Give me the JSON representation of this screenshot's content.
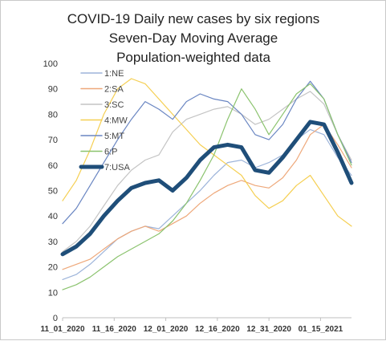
{
  "chart_data": {
    "type": "line",
    "title_lines": [
      "COVID-19 Daily new cases by six regions",
      "Seven-Day Moving Average",
      "Population-weighted data"
    ],
    "xlabel": "",
    "ylabel": "",
    "ylim": [
      0,
      100
    ],
    "yticks": [
      0,
      10,
      20,
      30,
      40,
      50,
      60,
      70,
      80,
      90,
      100
    ],
    "xlim": [
      "2020-11-01",
      "2021-01-24"
    ],
    "xticks": [
      "11_01_2020",
      "11_16_2020",
      "12_01_2020",
      "12_16_2020",
      "12_31_2020",
      "01_15_2021"
    ],
    "grid": false,
    "legend_position": "top-left",
    "series": [
      {
        "name": "1:NE",
        "color": "#9db4da",
        "x": [
          "2020-11-01",
          "2020-11-05",
          "2020-11-09",
          "2020-11-13",
          "2020-11-17",
          "2020-11-21",
          "2020-11-25",
          "2020-11-29",
          "2020-12-03",
          "2020-12-07",
          "2020-12-11",
          "2020-12-15",
          "2020-12-19",
          "2020-12-23",
          "2020-12-27",
          "2020-12-31",
          "2021-01-04",
          "2021-01-08",
          "2021-01-12",
          "2021-01-16",
          "2021-01-20",
          "2021-01-24"
        ],
        "values": [
          15,
          17,
          21,
          26,
          31,
          34,
          36,
          35,
          40,
          45,
          50,
          56,
          61,
          62,
          59,
          61,
          64,
          70,
          74,
          72,
          63,
          56
        ]
      },
      {
        "name": "2:SA",
        "color": "#eea87a",
        "x": [
          "2020-11-01",
          "2020-11-05",
          "2020-11-09",
          "2020-11-13",
          "2020-11-17",
          "2020-11-21",
          "2020-11-25",
          "2020-11-29",
          "2020-12-03",
          "2020-12-07",
          "2020-12-11",
          "2020-12-15",
          "2020-12-19",
          "2020-12-23",
          "2020-12-27",
          "2020-12-31",
          "2021-01-04",
          "2021-01-08",
          "2021-01-12",
          "2021-01-16",
          "2021-01-20",
          "2021-01-24"
        ],
        "values": [
          19,
          21,
          23,
          27,
          31,
          34,
          36,
          34,
          37,
          40,
          45,
          49,
          52,
          54,
          52,
          51,
          55,
          62,
          72,
          76,
          68,
          59
        ]
      },
      {
        "name": "3:SC",
        "color": "#c4c4c4",
        "x": [
          "2020-11-01",
          "2020-11-05",
          "2020-11-09",
          "2020-11-13",
          "2020-11-17",
          "2020-11-21",
          "2020-11-25",
          "2020-11-29",
          "2020-12-03",
          "2020-12-07",
          "2020-12-11",
          "2020-12-15",
          "2020-12-19",
          "2020-12-23",
          "2020-12-27",
          "2020-12-31",
          "2021-01-04",
          "2021-01-08",
          "2021-01-12",
          "2021-01-16",
          "2021-01-20",
          "2021-01-24"
        ],
        "values": [
          26,
          30,
          36,
          44,
          52,
          58,
          62,
          64,
          73,
          78,
          80,
          82,
          83,
          80,
          76,
          78,
          82,
          86,
          89,
          84,
          72,
          62
        ]
      },
      {
        "name": "4:MW",
        "color": "#f5cf52",
        "x": [
          "2020-11-01",
          "2020-11-05",
          "2020-11-09",
          "2020-11-13",
          "2020-11-17",
          "2020-11-21",
          "2020-11-25",
          "2020-11-29",
          "2020-12-03",
          "2020-12-07",
          "2020-12-11",
          "2020-12-15",
          "2020-12-19",
          "2020-12-23",
          "2020-12-27",
          "2020-12-31",
          "2021-01-04",
          "2021-01-08",
          "2021-01-12",
          "2021-01-16",
          "2021-01-20",
          "2021-01-24"
        ],
        "values": [
          46,
          54,
          66,
          80,
          90,
          94,
          92,
          86,
          80,
          74,
          68,
          64,
          60,
          56,
          48,
          43,
          46,
          52,
          56,
          48,
          40,
          36
        ]
      },
      {
        "name": "5:MT",
        "color": "#6a86c2",
        "x": [
          "2020-11-01",
          "2020-11-05",
          "2020-11-09",
          "2020-11-13",
          "2020-11-17",
          "2020-11-21",
          "2020-11-25",
          "2020-11-29",
          "2020-12-03",
          "2020-12-07",
          "2020-12-11",
          "2020-12-15",
          "2020-12-19",
          "2020-12-23",
          "2020-12-27",
          "2020-12-31",
          "2021-01-04",
          "2021-01-08",
          "2021-01-12",
          "2021-01-16",
          "2021-01-20",
          "2021-01-24"
        ],
        "values": [
          37,
          43,
          52,
          61,
          70,
          78,
          85,
          82,
          78,
          85,
          88,
          86,
          85,
          80,
          72,
          70,
          76,
          86,
          93,
          86,
          72,
          61
        ]
      },
      {
        "name": "6:P",
        "color": "#8bc36e",
        "x": [
          "2020-11-01",
          "2020-11-05",
          "2020-11-09",
          "2020-11-13",
          "2020-11-17",
          "2020-11-21",
          "2020-11-25",
          "2020-11-29",
          "2020-12-03",
          "2020-12-07",
          "2020-12-11",
          "2020-12-15",
          "2020-12-19",
          "2020-12-23",
          "2020-12-27",
          "2020-12-31",
          "2021-01-04",
          "2021-01-08",
          "2021-01-12",
          "2021-01-16",
          "2021-01-20",
          "2021-01-24"
        ],
        "values": [
          11,
          13,
          16,
          20,
          24,
          27,
          30,
          33,
          38,
          45,
          54,
          64,
          78,
          90,
          82,
          72,
          80,
          88,
          92,
          86,
          72,
          60
        ]
      },
      {
        "name": "7:USA",
        "color": "#1f4e79",
        "x": [
          "2020-11-01",
          "2020-11-05",
          "2020-11-09",
          "2020-11-13",
          "2020-11-17",
          "2020-11-21",
          "2020-11-25",
          "2020-11-29",
          "2020-12-03",
          "2020-12-07",
          "2020-12-11",
          "2020-12-15",
          "2020-12-19",
          "2020-12-23",
          "2020-12-27",
          "2020-12-31",
          "2021-01-04",
          "2021-01-08",
          "2021-01-12",
          "2021-01-16",
          "2021-01-20",
          "2021-01-24"
        ],
        "values": [
          25,
          28,
          33,
          40,
          46,
          51,
          53,
          54,
          50,
          55,
          62,
          67,
          68,
          67,
          58,
          57,
          63,
          70,
          77,
          76,
          65,
          53
        ]
      }
    ]
  }
}
